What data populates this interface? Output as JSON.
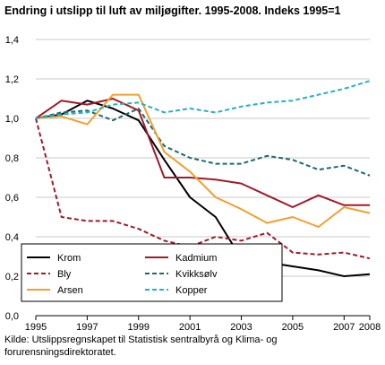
{
  "chart_data": {
    "type": "line",
    "title": "Endring i utslipp til luft av miljøgifter. 1995-2008. Indeks 1995=1",
    "xlabel": "",
    "ylabel": "",
    "x": [
      1995,
      1996,
      1997,
      1998,
      1999,
      2000,
      2001,
      2002,
      2003,
      2004,
      2005,
      2006,
      2007,
      2008
    ],
    "xticks": [
      1995,
      1997,
      1999,
      2001,
      2003,
      2005,
      2007,
      2008
    ],
    "xtick_labels": [
      "1995",
      "1997",
      "1999",
      "2001",
      "2003",
      "2005",
      "2007",
      "2008"
    ],
    "ylim": [
      0,
      1.4
    ],
    "yticks": [
      0,
      0.2,
      0.4,
      0.6,
      0.8,
      1.0,
      1.2,
      1.4
    ],
    "ytick_labels": [
      "0,0",
      "0,2",
      "0,4",
      "0,6",
      "0,8",
      "1,0",
      "1,2",
      "1,4"
    ],
    "grid": "horizontal",
    "legend_position": "bottom-left",
    "series": [
      {
        "name": "Krom",
        "color": "#000000",
        "dash": "solid",
        "values": [
          1.0,
          1.02,
          1.09,
          1.05,
          0.99,
          0.79,
          0.6,
          0.5,
          0.29,
          0.27,
          0.25,
          0.23,
          0.2,
          0.21
        ]
      },
      {
        "name": "Kadmium",
        "color": "#9e1b2a",
        "dash": "solid",
        "values": [
          1.0,
          1.09,
          1.07,
          1.1,
          1.04,
          0.7,
          0.7,
          0.69,
          0.67,
          0.61,
          0.55,
          0.61,
          0.56,
          0.56
        ]
      },
      {
        "name": "Bly",
        "color": "#9e1b2a",
        "dash": "dashed",
        "values": [
          1.0,
          0.5,
          0.48,
          0.48,
          0.44,
          0.38,
          0.35,
          0.4,
          0.38,
          0.42,
          0.32,
          0.31,
          0.32,
          0.29
        ]
      },
      {
        "name": "Kvikksølv",
        "color": "#1c6b6b",
        "dash": "dashed",
        "values": [
          1.0,
          1.03,
          1.04,
          0.99,
          1.05,
          0.86,
          0.8,
          0.77,
          0.77,
          0.81,
          0.79,
          0.74,
          0.76,
          0.71
        ]
      },
      {
        "name": "Arsen",
        "color": "#f0a030",
        "dash": "solid",
        "values": [
          1.0,
          1.01,
          0.97,
          1.12,
          1.12,
          0.83,
          0.73,
          0.6,
          0.54,
          0.47,
          0.5,
          0.45,
          0.55,
          0.52
        ]
      },
      {
        "name": "Kopper",
        "color": "#2ab0bf",
        "dash": "dashed",
        "values": [
          1.0,
          1.02,
          1.03,
          1.07,
          1.08,
          1.03,
          1.05,
          1.03,
          1.06,
          1.08,
          1.09,
          1.12,
          1.15,
          1.19
        ]
      }
    ]
  },
  "source": "Kilde: Utslippsregnskapet til Statistisk sentralbyrå og Klima- og forurensningsdirektoratet."
}
